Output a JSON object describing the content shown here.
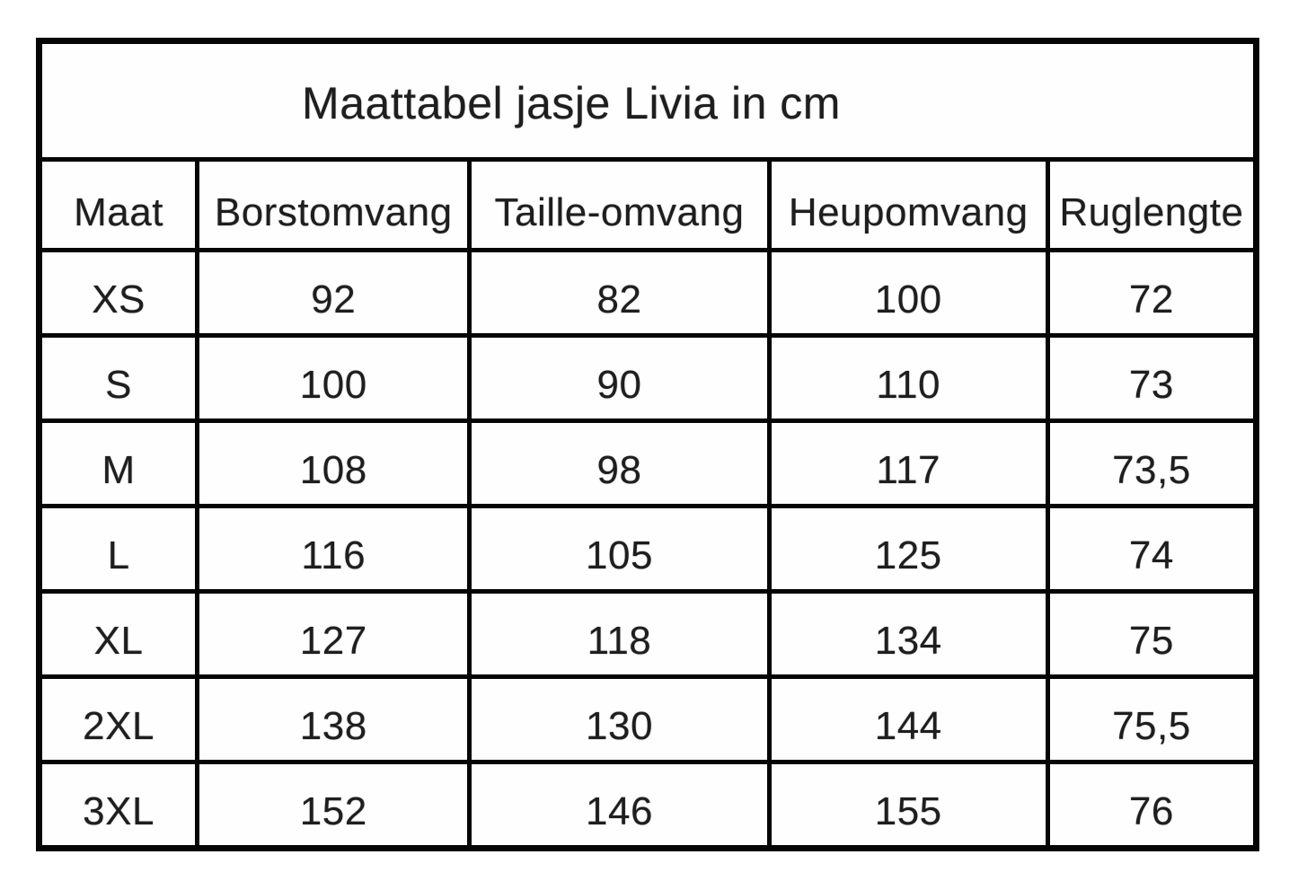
{
  "table": {
    "title": "Maattabel jasje Livia in cm",
    "unit": "cm",
    "columns": [
      "Maat",
      "Borstomvang",
      "Taille-omvang",
      "Heupomvang",
      "Ruglengte"
    ],
    "rows": [
      {
        "size": "XS",
        "values": [
          "92",
          "82",
          "100",
          "72"
        ]
      },
      {
        "size": "S",
        "values": [
          "100",
          "90",
          "110",
          "73"
        ]
      },
      {
        "size": "M",
        "values": [
          "108",
          "98",
          "117",
          "73,5"
        ]
      },
      {
        "size": "L",
        "values": [
          "116",
          "105",
          "125",
          "74"
        ]
      },
      {
        "size": "XL",
        "values": [
          "127",
          "118",
          "134",
          "75"
        ]
      },
      {
        "size": "2XL",
        "values": [
          "138",
          "130",
          "144",
          "75,5"
        ]
      },
      {
        "size": "3XL",
        "values": [
          "152",
          "146",
          "155",
          "76"
        ]
      }
    ]
  },
  "colors": {
    "background": "#ffffff",
    "border": "#050505",
    "text": "#1e1e1e"
  }
}
